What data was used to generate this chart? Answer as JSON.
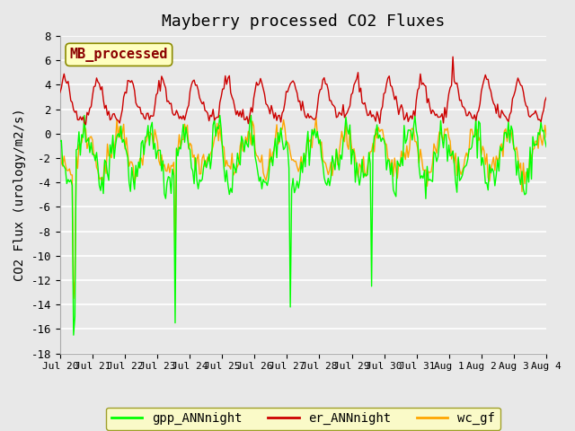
{
  "title": "Mayberry processed CO2 Fluxes",
  "ylabel": "CO2 Flux (urology/m2/s)",
  "ylim": [
    -18,
    8
  ],
  "yticks": [
    -18,
    -16,
    -14,
    -12,
    -10,
    -8,
    -6,
    -4,
    -2,
    0,
    2,
    4,
    6,
    8
  ],
  "background_color": "#e8e8e8",
  "plot_bg_color": "#e8e8e8",
  "grid_color": "#ffffff",
  "line_colors": {
    "gpp": "#00ff00",
    "er": "#cc0000",
    "wc": "#ffa500"
  },
  "legend_labels": [
    "gpp_ANNnight",
    "er_ANNnight",
    "wc_gf"
  ],
  "legend_box_color": "#ffffc0",
  "legend_box_edge": "#8b8b00",
  "annotation_text": "MB_processed",
  "annotation_color": "#8b0000",
  "annotation_bg": "#ffffc0",
  "annotation_edge": "#8b8b00",
  "n_points": 360,
  "x_start": 0,
  "x_end": 15,
  "x_ticks_labels": [
    "Jul 20",
    "Jul 21",
    "Jul 22",
    "Jul 23",
    "Jul 24",
    "Jul 25",
    "Jul 26",
    "Jul 27",
    "Jul 28",
    "Jul 29",
    "Jul 30",
    "Jul 31",
    "Aug 1",
    "Aug 2",
    "Aug 3",
    "Aug 4"
  ],
  "x_ticks_pos": [
    0,
    1,
    2,
    3,
    4,
    5,
    6,
    7,
    8,
    9,
    10,
    11,
    12,
    13,
    14,
    15
  ],
  "figsize": [
    6.4,
    4.8
  ],
  "dpi": 100
}
